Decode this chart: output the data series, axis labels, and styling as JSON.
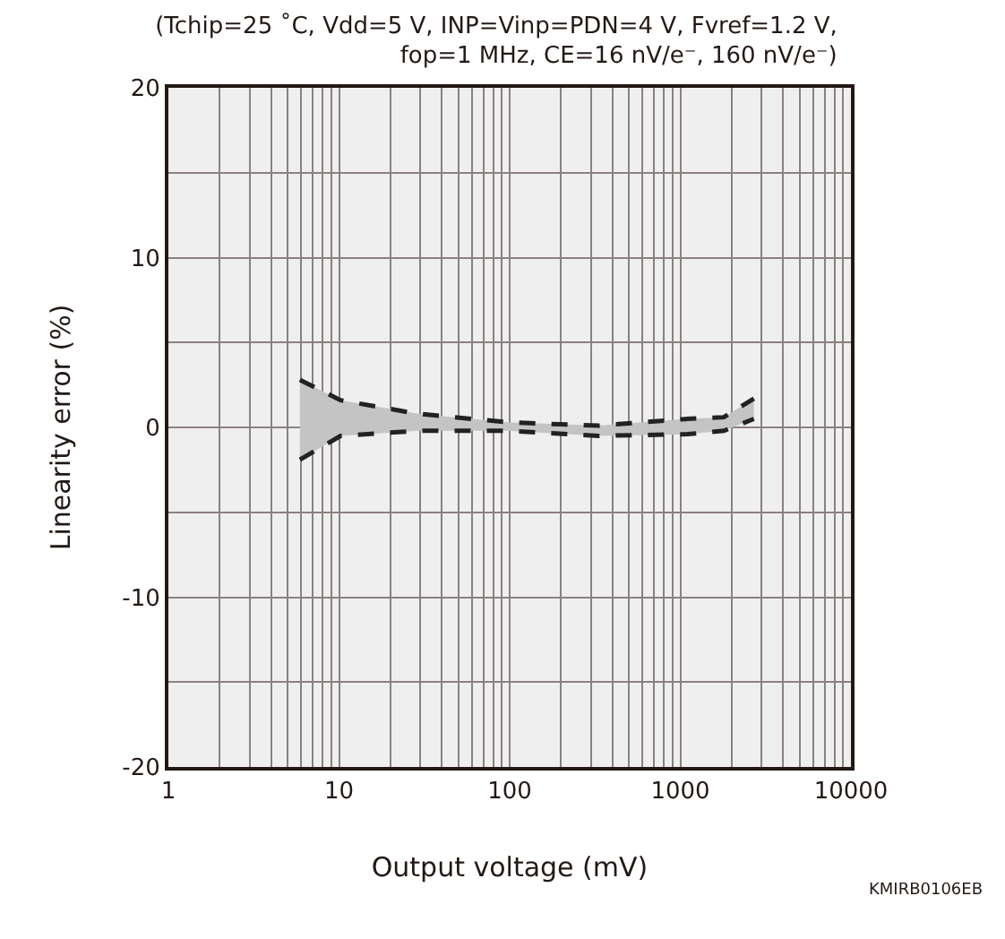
{
  "chart_data": {
    "type": "line",
    "title": "(Tchip=25 ˚C, Vdd=5 V, INP=Vinp=PDN=4 V, Fvref=1.2 V,\nfop=1 MHz, CE=16 nV/e⁻, 160 nV/e⁻)",
    "xlabel": "Output voltage (mV)",
    "ylabel": "Linearity error (%)",
    "annotations": [
      "KMIRB0106EB"
    ],
    "log": "x",
    "x": [
      5.9,
      10.2,
      29,
      98,
      330,
      1100,
      1800,
      2700
    ],
    "series": [
      {
        "color": "#c4c4c4",
        "values": [
          null,
          null,
          null,
          null,
          null,
          null,
          null,
          null
        ],
        "lower": [
          -1.9,
          -0.5,
          -0.2,
          -0.2,
          -0.5,
          -0.4,
          -0.2,
          0.5
        ],
        "upper": [
          2.8,
          1.6,
          0.8,
          0.3,
          0.1,
          0.5,
          0.6,
          1.7
        ]
      },
      {
        "color": "#222222",
        "values": [
          -1.9,
          -0.5,
          -0.2,
          -0.2,
          -0.5,
          -0.4,
          -0.2,
          0.5
        ]
      },
      {
        "color": "#222222",
        "values": [
          2.8,
          1.6,
          0.8,
          0.3,
          0.1,
          0.5,
          0.6,
          1.7
        ]
      }
    ],
    "line_style": "dashed",
    "xlim": [
      1,
      10000
    ],
    "ylim": [
      -20,
      20
    ],
    "xticks": [
      1,
      {
        "value": 2,
        "label": null
      },
      {
        "value": 3,
        "label": null
      },
      {
        "value": 4,
        "label": null
      },
      {
        "value": 5,
        "label": null
      },
      {
        "value": 6,
        "label": null
      },
      {
        "value": 7,
        "label": null
      },
      {
        "value": 8,
        "label": null
      },
      {
        "value": 9,
        "label": null
      },
      10,
      {
        "value": 20,
        "label": null
      },
      {
        "value": 30,
        "label": null
      },
      {
        "value": 40,
        "label": null
      },
      {
        "value": 50,
        "label": null
      },
      {
        "value": 60,
        "label": null
      },
      {
        "value": 70,
        "label": null
      },
      {
        "value": 80,
        "label": null
      },
      {
        "value": 90,
        "label": null
      },
      100,
      {
        "value": 200,
        "label": null
      },
      {
        "value": 300,
        "label": null
      },
      {
        "value": 400,
        "label": null
      },
      {
        "value": 500,
        "label": null
      },
      {
        "value": 600,
        "label": null
      },
      {
        "value": 700,
        "label": null
      },
      {
        "value": 800,
        "label": null
      },
      {
        "value": 900,
        "label": null
      },
      1000,
      {
        "value": 2000,
        "label": null
      },
      {
        "value": 3000,
        "label": null
      },
      {
        "value": 4000,
        "label": null
      },
      {
        "value": 5000,
        "label": null
      },
      {
        "value": 6000,
        "label": null
      },
      {
        "value": 7000,
        "label": null
      },
      {
        "value": 8000,
        "label": null
      },
      {
        "value": 9000,
        "label": null
      },
      10000
    ],
    "yticks": [
      -20,
      {
        "value": -15,
        "label": null
      },
      -10,
      {
        "value": -5,
        "label": null
      },
      0,
      {
        "value": 5,
        "label": null
      },
      10,
      {
        "value": 15,
        "label": null
      },
      20
    ],
    "grid": true
  }
}
